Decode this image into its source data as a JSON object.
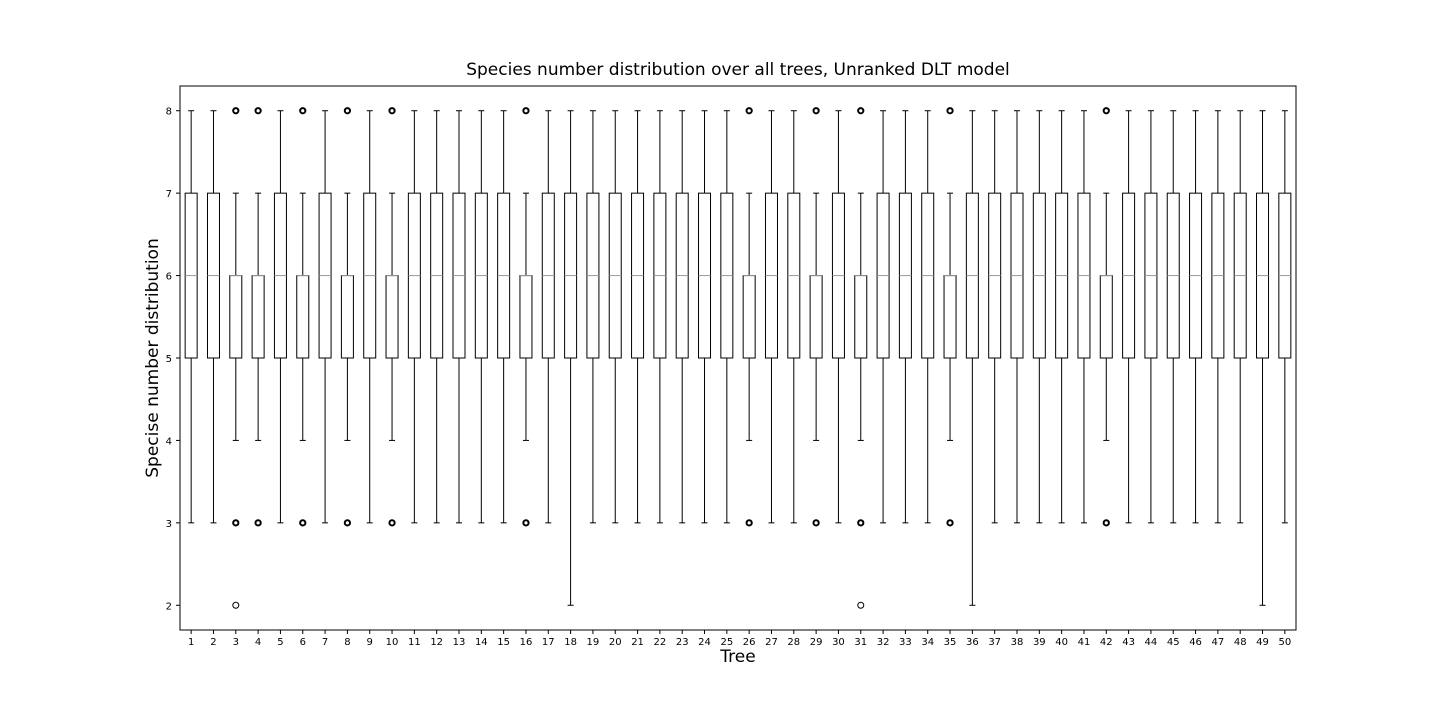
{
  "chart_data": {
    "type": "boxplot",
    "title": "Species number distribution over all trees, Unranked DLT model",
    "xlabel": "Tree",
    "ylabel": "Specise number distribution",
    "ylim": [
      1.7,
      8.3
    ],
    "yticks": [
      2,
      3,
      4,
      5,
      6,
      7,
      8
    ],
    "grid": false,
    "colors": {
      "box": "#000000",
      "median": "#ff7f0e",
      "whisker": "#000000",
      "flier": "#000000"
    },
    "trees": [
      {
        "label": "1",
        "whisker_low": 3,
        "q1": 5,
        "median": 6,
        "q3": 7,
        "whisker_high": 8,
        "outliers": []
      },
      {
        "label": "2",
        "whisker_low": 3,
        "q1": 5,
        "median": 6,
        "q3": 7,
        "whisker_high": 8,
        "outliers": []
      },
      {
        "label": "3",
        "whisker_low": 4,
        "q1": 5,
        "median": 6,
        "q3": 6,
        "whisker_high": 7,
        "outliers": [
          8,
          3,
          2
        ]
      },
      {
        "label": "4",
        "whisker_low": 4,
        "q1": 5,
        "median": 6,
        "q3": 6,
        "whisker_high": 7,
        "outliers": [
          8,
          3
        ]
      },
      {
        "label": "5",
        "whisker_low": 3,
        "q1": 5,
        "median": 6,
        "q3": 7,
        "whisker_high": 8,
        "outliers": []
      },
      {
        "label": "6",
        "whisker_low": 4,
        "q1": 5,
        "median": 6,
        "q3": 6,
        "whisker_high": 7,
        "outliers": [
          8,
          3
        ]
      },
      {
        "label": "7",
        "whisker_low": 3,
        "q1": 5,
        "median": 6,
        "q3": 7,
        "whisker_high": 8,
        "outliers": []
      },
      {
        "label": "8",
        "whisker_low": 4,
        "q1": 5,
        "median": 6,
        "q3": 6,
        "whisker_high": 7,
        "outliers": [
          8,
          3
        ]
      },
      {
        "label": "9",
        "whisker_low": 3,
        "q1": 5,
        "median": 6,
        "q3": 7,
        "whisker_high": 8,
        "outliers": []
      },
      {
        "label": "10",
        "whisker_low": 4,
        "q1": 5,
        "median": 6,
        "q3": 6,
        "whisker_high": 7,
        "outliers": [
          8,
          3
        ]
      },
      {
        "label": "11",
        "whisker_low": 3,
        "q1": 5,
        "median": 6,
        "q3": 7,
        "whisker_high": 8,
        "outliers": []
      },
      {
        "label": "12",
        "whisker_low": 3,
        "q1": 5,
        "median": 6,
        "q3": 7,
        "whisker_high": 8,
        "outliers": []
      },
      {
        "label": "13",
        "whisker_low": 3,
        "q1": 5,
        "median": 6,
        "q3": 7,
        "whisker_high": 8,
        "outliers": []
      },
      {
        "label": "14",
        "whisker_low": 3,
        "q1": 5,
        "median": 6,
        "q3": 7,
        "whisker_high": 8,
        "outliers": []
      },
      {
        "label": "15",
        "whisker_low": 3,
        "q1": 5,
        "median": 6,
        "q3": 7,
        "whisker_high": 8,
        "outliers": []
      },
      {
        "label": "16",
        "whisker_low": 4,
        "q1": 5,
        "median": 6,
        "q3": 6,
        "whisker_high": 7,
        "outliers": [
          8,
          3
        ]
      },
      {
        "label": "17",
        "whisker_low": 3,
        "q1": 5,
        "median": 6,
        "q3": 7,
        "whisker_high": 8,
        "outliers": []
      },
      {
        "label": "18",
        "whisker_low": 2,
        "q1": 5,
        "median": 6,
        "q3": 7,
        "whisker_high": 8,
        "outliers": []
      },
      {
        "label": "19",
        "whisker_low": 3,
        "q1": 5,
        "median": 6,
        "q3": 7,
        "whisker_high": 8,
        "outliers": []
      },
      {
        "label": "20",
        "whisker_low": 3,
        "q1": 5,
        "median": 6,
        "q3": 7,
        "whisker_high": 8,
        "outliers": []
      },
      {
        "label": "21",
        "whisker_low": 3,
        "q1": 5,
        "median": 6,
        "q3": 7,
        "whisker_high": 8,
        "outliers": []
      },
      {
        "label": "22",
        "whisker_low": 3,
        "q1": 5,
        "median": 6,
        "q3": 7,
        "whisker_high": 8,
        "outliers": []
      },
      {
        "label": "23",
        "whisker_low": 3,
        "q1": 5,
        "median": 6,
        "q3": 7,
        "whisker_high": 8,
        "outliers": []
      },
      {
        "label": "24",
        "whisker_low": 3,
        "q1": 5,
        "median": 6,
        "q3": 7,
        "whisker_high": 8,
        "outliers": []
      },
      {
        "label": "25",
        "whisker_low": 3,
        "q1": 5,
        "median": 6,
        "q3": 7,
        "whisker_high": 8,
        "outliers": []
      },
      {
        "label": "26",
        "whisker_low": 4,
        "q1": 5,
        "median": 6,
        "q3": 6,
        "whisker_high": 7,
        "outliers": [
          8,
          3
        ]
      },
      {
        "label": "27",
        "whisker_low": 3,
        "q1": 5,
        "median": 6,
        "q3": 7,
        "whisker_high": 8,
        "outliers": []
      },
      {
        "label": "28",
        "whisker_low": 3,
        "q1": 5,
        "median": 6,
        "q3": 7,
        "whisker_high": 8,
        "outliers": []
      },
      {
        "label": "29",
        "whisker_low": 4,
        "q1": 5,
        "median": 6,
        "q3": 6,
        "whisker_high": 7,
        "outliers": [
          8,
          3
        ]
      },
      {
        "label": "30",
        "whisker_low": 3,
        "q1": 5,
        "median": 6,
        "q3": 7,
        "whisker_high": 8,
        "outliers": []
      },
      {
        "label": "31",
        "whisker_low": 4,
        "q1": 5,
        "median": 6,
        "q3": 6,
        "whisker_high": 7,
        "outliers": [
          8,
          3,
          2
        ]
      },
      {
        "label": "32",
        "whisker_low": 3,
        "q1": 5,
        "median": 6,
        "q3": 7,
        "whisker_high": 8,
        "outliers": []
      },
      {
        "label": "33",
        "whisker_low": 3,
        "q1": 5,
        "median": 6,
        "q3": 7,
        "whisker_high": 8,
        "outliers": []
      },
      {
        "label": "34",
        "whisker_low": 3,
        "q1": 5,
        "median": 6,
        "q3": 7,
        "whisker_high": 8,
        "outliers": []
      },
      {
        "label": "35",
        "whisker_low": 4,
        "q1": 5,
        "median": 6,
        "q3": 6,
        "whisker_high": 7,
        "outliers": [
          8,
          3
        ]
      },
      {
        "label": "36",
        "whisker_low": 2,
        "q1": 5,
        "median": 6,
        "q3": 7,
        "whisker_high": 8,
        "outliers": []
      },
      {
        "label": "37",
        "whisker_low": 3,
        "q1": 5,
        "median": 6,
        "q3": 7,
        "whisker_high": 8,
        "outliers": []
      },
      {
        "label": "38",
        "whisker_low": 3,
        "q1": 5,
        "median": 6,
        "q3": 7,
        "whisker_high": 8,
        "outliers": []
      },
      {
        "label": "39",
        "whisker_low": 3,
        "q1": 5,
        "median": 6,
        "q3": 7,
        "whisker_high": 8,
        "outliers": []
      },
      {
        "label": "40",
        "whisker_low": 3,
        "q1": 5,
        "median": 6,
        "q3": 7,
        "whisker_high": 8,
        "outliers": []
      },
      {
        "label": "41",
        "whisker_low": 3,
        "q1": 5,
        "median": 6,
        "q3": 7,
        "whisker_high": 8,
        "outliers": []
      },
      {
        "label": "42",
        "whisker_low": 4,
        "q1": 5,
        "median": 6,
        "q3": 6,
        "whisker_high": 7,
        "outliers": [
          8,
          3
        ]
      },
      {
        "label": "43",
        "whisker_low": 3,
        "q1": 5,
        "median": 6,
        "q3": 7,
        "whisker_high": 8,
        "outliers": []
      },
      {
        "label": "44",
        "whisker_low": 3,
        "q1": 5,
        "median": 6,
        "q3": 7,
        "whisker_high": 8,
        "outliers": []
      },
      {
        "label": "45",
        "whisker_low": 3,
        "q1": 5,
        "median": 6,
        "q3": 7,
        "whisker_high": 8,
        "outliers": []
      },
      {
        "label": "46",
        "whisker_low": 3,
        "q1": 5,
        "median": 6,
        "q3": 7,
        "whisker_high": 8,
        "outliers": []
      },
      {
        "label": "47",
        "whisker_low": 3,
        "q1": 5,
        "median": 6,
        "q3": 7,
        "whisker_high": 8,
        "outliers": []
      },
      {
        "label": "48",
        "whisker_low": 3,
        "q1": 5,
        "median": 6,
        "q3": 7,
        "whisker_high": 8,
        "outliers": []
      },
      {
        "label": "49",
        "whisker_low": 2,
        "q1": 5,
        "median": 6,
        "q3": 7,
        "whisker_high": 8,
        "outliers": []
      },
      {
        "label": "50",
        "whisker_low": 3,
        "q1": 5,
        "median": 6,
        "q3": 7,
        "whisker_high": 8,
        "outliers": []
      }
    ]
  }
}
